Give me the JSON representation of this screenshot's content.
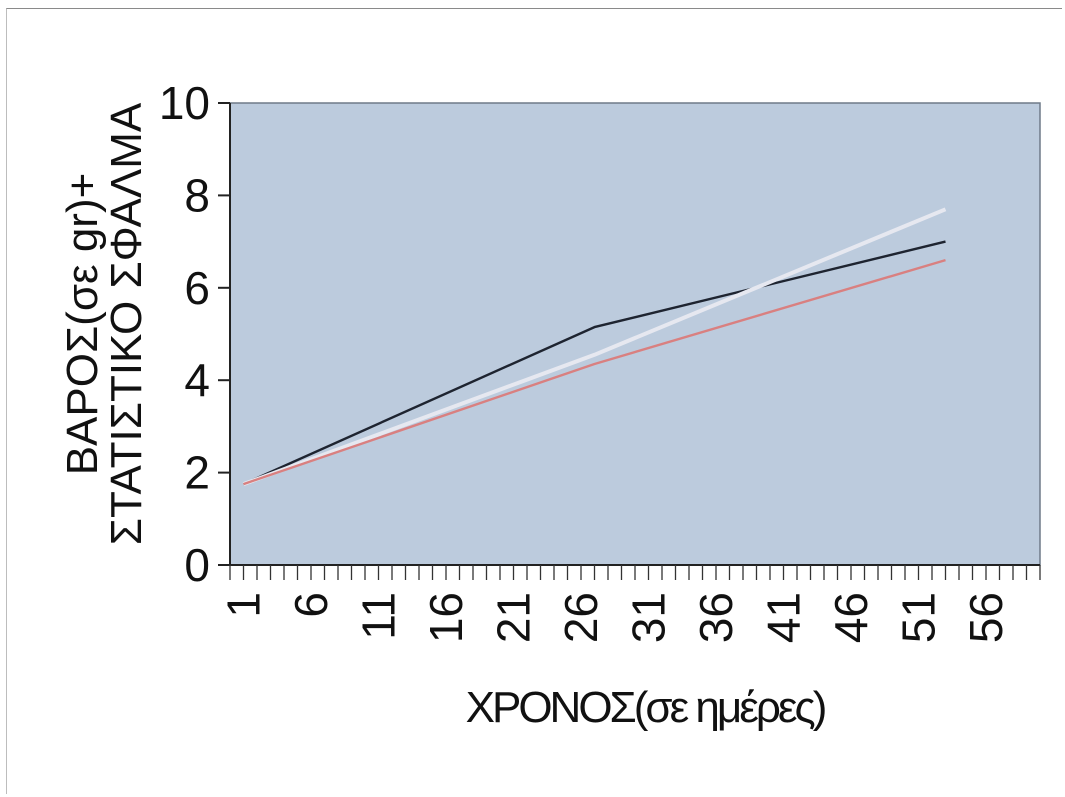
{
  "chart_data": {
    "type": "line",
    "title": "",
    "xlabel": "ΧΡΟΝΟΣ(σε ημέρες)",
    "ylabel": [
      "ΒΑΡΟΣ(σε gr)+",
      "ΣΤΑΤΙΣΤΙΚΟ ΣΦΑΛΜΑ"
    ],
    "xlim": [
      0,
      60
    ],
    "ylim": [
      0,
      10
    ],
    "x_tick_labels": [
      "1",
      "6",
      "11",
      "16",
      "21",
      "26",
      "31",
      "36",
      "41",
      "46",
      "51",
      "56"
    ],
    "y_tick_labels": [
      "0",
      "2",
      "4",
      "6",
      "8",
      "10"
    ],
    "series": [
      {
        "x": [
          1,
          27,
          53
        ],
        "y": [
          1.75,
          5.15,
          7.0
        ],
        "color": "#1e2430"
      },
      {
        "x": [
          1,
          27,
          53
        ],
        "y": [
          1.75,
          4.55,
          7.7
        ],
        "color": "#e6e8f0"
      },
      {
        "x": [
          1,
          27,
          53
        ],
        "y": [
          1.75,
          4.35,
          6.6
        ],
        "color": "#d98080"
      }
    ],
    "grid": false,
    "legend": false,
    "plot_background": "#bccbdd"
  }
}
